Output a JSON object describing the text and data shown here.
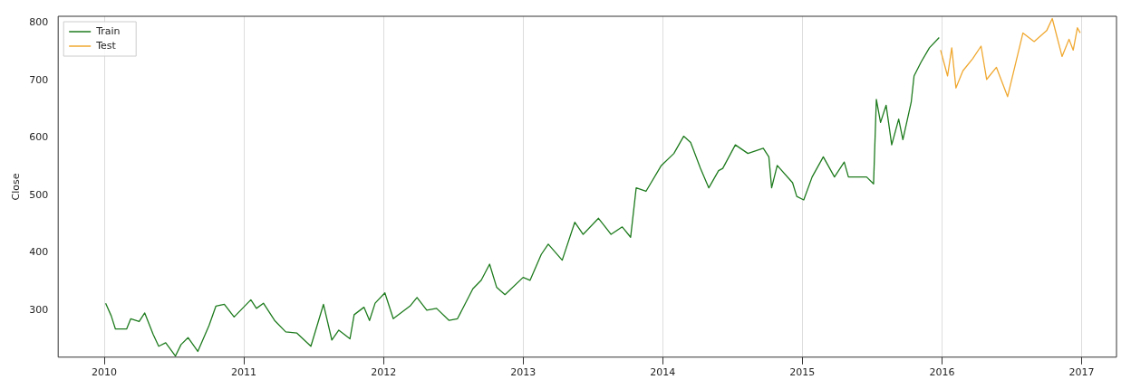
{
  "chart_data": {
    "type": "line",
    "ylabel": "Close",
    "xlim": [
      2009.67,
      2017.25
    ],
    "xticks": [
      2010,
      2011,
      2012,
      2013,
      2014,
      2015,
      2016,
      2017
    ],
    "ylim": [
      218,
      812
    ],
    "yticks": [
      300,
      400,
      500,
      600,
      700,
      800
    ],
    "grid": "x",
    "legend": "top left",
    "series": [
      {
        "name": "Train",
        "color": "#1e7b1e",
        "x": [
          2010.01,
          2010.05,
          2010.08,
          2010.16,
          2010.19,
          2010.25,
          2010.29,
          2010.35,
          2010.39,
          2010.44,
          2010.51,
          2010.55,
          2010.6,
          2010.67,
          2010.75,
          2010.8,
          2010.86,
          2010.93,
          2010.99,
          2011.05,
          2011.09,
          2011.14,
          2011.22,
          2011.3,
          2011.38,
          2011.48,
          2011.57,
          2011.63,
          2011.68,
          2011.76,
          2011.79,
          2011.86,
          2011.9,
          2011.94,
          2012.01,
          2012.07,
          2012.19,
          2012.24,
          2012.31,
          2012.38,
          2012.47,
          2012.53,
          2012.64,
          2012.7,
          2012.76,
          2012.81,
          2012.87,
          2013.0,
          2013.05,
          2013.13,
          2013.18,
          2013.28,
          2013.37,
          2013.43,
          2013.54,
          2013.63,
          2013.71,
          2013.77,
          2013.81,
          2013.88,
          2013.99,
          2014.08,
          2014.15,
          2014.2,
          2014.27,
          2014.33,
          2014.4,
          2014.43,
          2014.52,
          2014.61,
          2014.72,
          2014.76,
          2014.78,
          2014.82,
          2014.93,
          2014.96,
          2015.01,
          2015.07,
          2015.15,
          2015.23,
          2015.3,
          2015.33,
          2015.46,
          2015.51,
          2015.53,
          2015.56,
          2015.6,
          2015.64,
          2015.69,
          2015.72,
          2015.78,
          2015.8,
          2015.85,
          2015.91,
          2015.98
        ],
        "values": [
          312,
          290,
          267,
          267,
          285,
          280,
          295,
          258,
          237,
          243,
          220,
          240,
          252,
          228,
          273,
          307,
          310,
          288,
          303,
          318,
          303,
          312,
          282,
          262,
          260,
          237,
          310,
          248,
          265,
          250,
          292,
          305,
          282,
          312,
          330,
          285,
          307,
          322,
          300,
          303,
          282,
          285,
          337,
          352,
          380,
          340,
          327,
          357,
          352,
          397,
          415,
          387,
          453,
          432,
          460,
          432,
          445,
          427,
          513,
          507,
          552,
          573,
          603,
          592,
          547,
          513,
          543,
          547,
          588,
          573,
          582,
          567,
          513,
          552,
          522,
          498,
          492,
          532,
          567,
          532,
          558,
          532,
          532,
          520,
          667,
          627,
          657,
          588,
          633,
          597,
          663,
          708,
          732,
          757,
          775
        ]
      },
      {
        "name": "Test",
        "color": "#f0a830",
        "x": [
          2015.99,
          2016.04,
          2016.07,
          2016.1,
          2016.15,
          2016.22,
          2016.28,
          2016.32,
          2016.39,
          2016.47,
          2016.58,
          2016.66,
          2016.75,
          2016.79,
          2016.86,
          2016.91,
          2016.94,
          2016.97,
          2016.99
        ],
        "values": [
          753,
          708,
          757,
          687,
          717,
          738,
          760,
          702,
          723,
          672,
          783,
          768,
          787,
          808,
          742,
          772,
          753,
          792,
          783
        ]
      }
    ]
  }
}
